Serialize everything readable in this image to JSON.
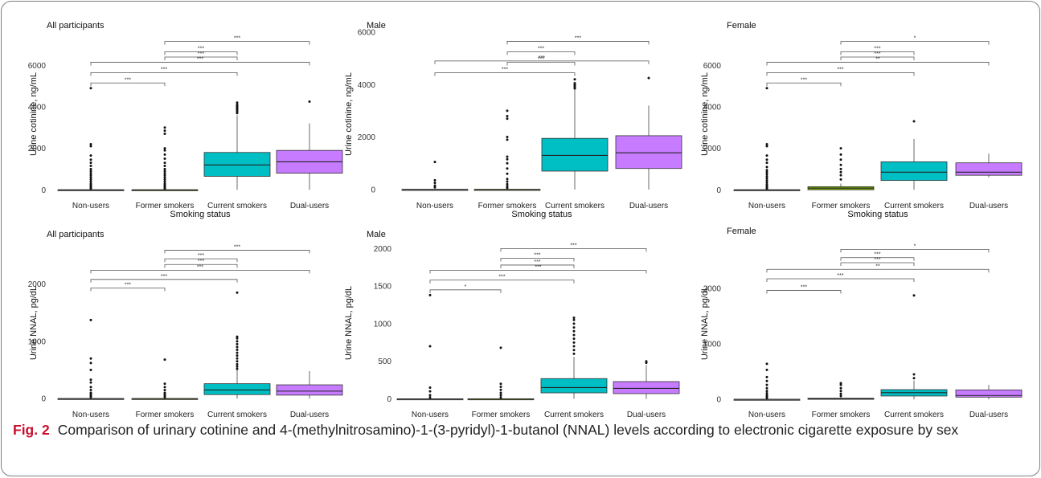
{
  "figure": {
    "caption_label": "Fig. 2",
    "caption_text": "Comparison of urinary cotinine and 4-(methylnitrosamino)-1-(3-pyridyl)-1-butanol (NNAL) levels according to electronic cigarette exposure by sex"
  },
  "colors": {
    "Non-users": "#999999",
    "Former smokers": "#7cae00",
    "Current smokers": "#00bfc4",
    "Dual-users": "#c77cff"
  },
  "chart_data": [
    {
      "type": "box",
      "title": "All participants",
      "xlabel": "Smoking status",
      "ylabel": "Urine cotinine, ng/mL",
      "categories": [
        "Non-users",
        "Former smokers",
        "Current smokers",
        "Dual-users"
      ],
      "ylim": [
        -300,
        7600
      ],
      "yticks": [
        0,
        2000,
        4000,
        6000
      ],
      "boxes": [
        {
          "min": 0,
          "q1": 0,
          "median": 0,
          "q3": 0,
          "max": 0,
          "outliers": [
            60,
            120,
            180,
            240,
            300,
            400,
            500,
            600,
            700,
            800,
            900,
            1000,
            1150,
            1300,
            1450,
            1650,
            2100,
            2200,
            4900
          ]
        },
        {
          "min": 0,
          "q1": 0,
          "median": 0,
          "q3": 0,
          "max": 0,
          "outliers": [
            60,
            120,
            180,
            240,
            300,
            400,
            500,
            600,
            700,
            800,
            900,
            1000,
            1150,
            1300,
            1500,
            1700,
            1900,
            2000,
            2700,
            2850,
            3000
          ]
        },
        {
          "min": 0,
          "q1": 650,
          "median": 1200,
          "q3": 1800,
          "max": 3600,
          "outliers": [
            3700,
            3780,
            3850,
            3900,
            3950,
            4000,
            4050,
            4100,
            4200
          ]
        },
        {
          "min": 0,
          "q1": 800,
          "median": 1350,
          "q3": 1900,
          "max": 3200,
          "outliers": [
            4250
          ]
        }
      ],
      "brackets": [
        {
          "from": 1,
          "to": 3,
          "y": 7150,
          "label": "***"
        },
        {
          "from": 1,
          "to": 2,
          "y": 6650,
          "label": "***"
        },
        {
          "from": 1,
          "to": 2,
          "y": 6400,
          "label": "***"
        },
        {
          "from": 0,
          "to": 3,
          "y": 6150,
          "label": "***"
        },
        {
          "from": 0,
          "to": 2,
          "y": 5650,
          "label": "***"
        },
        {
          "from": 0,
          "to": 1,
          "y": 5150,
          "label": "***"
        }
      ]
    },
    {
      "type": "box",
      "title": "Male",
      "xlabel": "Smoking status",
      "ylabel": "Urine cotinine, ng/mL",
      "categories": [
        "Non-users",
        "Former smokers",
        "Current smokers",
        "Dual-users"
      ],
      "ylim": [
        -250,
        6000
      ],
      "yticks": [
        0,
        2000,
        4000,
        6000
      ],
      "boxes": [
        {
          "min": 0,
          "q1": 0,
          "median": 0,
          "q3": 0,
          "max": 0,
          "outliers": [
            80,
            150,
            250,
            350,
            1050
          ]
        },
        {
          "min": 0,
          "q1": 0,
          "median": 0,
          "q3": 0,
          "max": 0,
          "outliers": [
            60,
            120,
            200,
            300,
            400,
            600,
            800,
            1000,
            1150,
            1250,
            1900,
            2000,
            2700,
            2800,
            3000
          ]
        },
        {
          "min": 0,
          "q1": 700,
          "median": 1300,
          "q3": 1950,
          "max": 3800,
          "outliers": [
            3850,
            3900,
            3950,
            4000,
            4050,
            4200
          ]
        },
        {
          "min": 0,
          "q1": 800,
          "median": 1400,
          "q3": 2050,
          "max": 3200,
          "outliers": [
            4250
          ]
        }
      ],
      "brackets": [
        {
          "from": 1,
          "to": 3,
          "y": 5650,
          "label": "***"
        },
        {
          "from": 1,
          "to": 2,
          "y": 5250,
          "label": "***"
        },
        {
          "from": 1,
          "to": 2,
          "y": 4850,
          "label": "***"
        },
        {
          "from": 0,
          "to": 3,
          "y": 4900,
          "label": "***"
        },
        {
          "from": 0,
          "to": 2,
          "y": 4450,
          "label": "***"
        }
      ]
    },
    {
      "type": "box",
      "title": "Female",
      "xlabel": "Smoking status",
      "ylabel": "Urine cotinine, ng/mL",
      "categories": [
        "Non-users",
        "Former smokers",
        "Current smokers",
        "Dual-users"
      ],
      "ylim": [
        -300,
        7600
      ],
      "yticks": [
        0,
        2000,
        4000,
        6000
      ],
      "boxes": [
        {
          "min": 0,
          "q1": 0,
          "median": 0,
          "q3": 0,
          "max": 0,
          "outliers": [
            60,
            120,
            180,
            250,
            350,
            450,
            550,
            650,
            750,
            850,
            950,
            1100,
            1300,
            1450,
            1650,
            2100,
            2200,
            4900
          ]
        },
        {
          "min": 0,
          "q1": 0,
          "median": 80,
          "q3": 150,
          "max": 300,
          "outliers": [
            500,
            700,
            850,
            1000,
            1200,
            1450,
            1700,
            2000
          ]
        },
        {
          "min": 0,
          "q1": 450,
          "median": 850,
          "q3": 1350,
          "max": 2450,
          "outliers": [
            3300
          ]
        },
        {
          "min": 600,
          "q1": 700,
          "median": 850,
          "q3": 1300,
          "max": 1750,
          "outliers": []
        }
      ],
      "brackets": [
        {
          "from": 1,
          "to": 3,
          "y": 7150,
          "label": "*"
        },
        {
          "from": 1,
          "to": 2,
          "y": 6650,
          "label": "***"
        },
        {
          "from": 1,
          "to": 2,
          "y": 6400,
          "label": "***"
        },
        {
          "from": 0,
          "to": 3,
          "y": 6150,
          "label": "**"
        },
        {
          "from": 0,
          "to": 2,
          "y": 5650,
          "label": "***"
        },
        {
          "from": 0,
          "to": 1,
          "y": 5150,
          "label": "***"
        }
      ]
    },
    {
      "type": "box",
      "title": "All participants",
      "xlabel": "Smoking status",
      "ylabel": "Urine NNAL, pg/dL",
      "categories": [
        "Non-users",
        "Former smokers",
        "Current smokers",
        "Dual-users"
      ],
      "ylim": [
        -110,
        2750
      ],
      "yticks": [
        0,
        1000,
        2000
      ],
      "boxes": [
        {
          "min": 0,
          "q1": 0,
          "median": 0,
          "q3": 0,
          "max": 0,
          "outliers": [
            25,
            50,
            75,
            100,
            150,
            200,
            280,
            330,
            500,
            620,
            700,
            1370
          ]
        },
        {
          "min": 0,
          "q1": 0,
          "median": 0,
          "q3": 0,
          "max": 0,
          "outliers": [
            25,
            50,
            75,
            100,
            150,
            200,
            260,
            680
          ]
        },
        {
          "min": 0,
          "q1": 70,
          "median": 150,
          "q3": 260,
          "max": 500,
          "outliers": [
            520,
            560,
            600,
            650,
            700,
            750,
            800,
            850,
            900,
            950,
            1000,
            1050,
            1080,
            1850
          ]
        },
        {
          "min": 0,
          "q1": 60,
          "median": 130,
          "q3": 240,
          "max": 480,
          "outliers": []
        }
      ],
      "brackets": [
        {
          "from": 1,
          "to": 3,
          "y": 2590,
          "label": "***"
        },
        {
          "from": 1,
          "to": 2,
          "y": 2440,
          "label": "***"
        },
        {
          "from": 1,
          "to": 2,
          "y": 2340,
          "label": "***"
        },
        {
          "from": 0,
          "to": 3,
          "y": 2240,
          "label": "***"
        },
        {
          "from": 0,
          "to": 2,
          "y": 2080,
          "label": "***"
        },
        {
          "from": 0,
          "to": 1,
          "y": 1930,
          "label": "***"
        }
      ]
    },
    {
      "type": "box",
      "title": "Male",
      "xlabel": "Smoking status",
      "ylabel": "Urine NNAL, pg/dL",
      "categories": [
        "Non-users",
        "Former smokers",
        "Current smokers",
        "Dual-users"
      ],
      "ylim": [
        -80,
        2100
      ],
      "yticks": [
        0,
        500,
        1000,
        1500,
        2000
      ],
      "boxes": [
        {
          "min": 0,
          "q1": 0,
          "median": 0,
          "q3": 0,
          "max": 0,
          "outliers": [
            20,
            50,
            100,
            150,
            700,
            1380
          ]
        },
        {
          "min": 0,
          "q1": 0,
          "median": 0,
          "q3": 0,
          "max": 0,
          "outliers": [
            20,
            50,
            80,
            120,
            160,
            200,
            680
          ]
        },
        {
          "min": 0,
          "q1": 80,
          "median": 150,
          "q3": 270,
          "max": 560,
          "outliers": [
            600,
            650,
            700,
            750,
            800,
            850,
            900,
            950,
            1000,
            1050,
            1080
          ]
        },
        {
          "min": 0,
          "q1": 70,
          "median": 140,
          "q3": 230,
          "max": 450,
          "outliers": [
            480,
            500
          ]
        }
      ],
      "brackets": [
        {
          "from": 1,
          "to": 3,
          "y": 2000,
          "label": "***"
        },
        {
          "from": 1,
          "to": 2,
          "y": 1870,
          "label": "***"
        },
        {
          "from": 1,
          "to": 2,
          "y": 1780,
          "label": "***"
        },
        {
          "from": 0,
          "to": 3,
          "y": 1710,
          "label": "***"
        },
        {
          "from": 0,
          "to": 2,
          "y": 1580,
          "label": "***"
        },
        {
          "from": 0,
          "to": 1,
          "y": 1450,
          "label": "*"
        }
      ]
    },
    {
      "type": "box",
      "title": "Female",
      "xlabel": "Smoking status",
      "ylabel": "Urine NNAL, pg/dL",
      "categories": [
        "Non-users",
        "Former smokers",
        "Current smokers",
        "Dual-users"
      ],
      "ylim": [
        -100,
        2850
      ],
      "yticks": [
        0,
        1000,
        2000
      ],
      "boxes": [
        {
          "min": 0,
          "q1": 0,
          "median": 0,
          "q3": 0,
          "max": 0,
          "outliers": [
            25,
            50,
            75,
            110,
            150,
            200,
            260,
            330,
            400,
            530,
            640
          ]
        },
        {
          "min": 0,
          "q1": 0,
          "median": 10,
          "q3": 20,
          "max": 40,
          "outliers": [
            60,
            100,
            150,
            200,
            260,
            290
          ]
        },
        {
          "min": 0,
          "q1": 60,
          "median": 120,
          "q3": 175,
          "max": 340,
          "outliers": [
            380,
            450,
            1870
          ]
        },
        {
          "min": 0,
          "q1": 40,
          "median": 70,
          "q3": 170,
          "max": 260,
          "outliers": []
        }
      ],
      "brackets": [
        {
          "from": 1,
          "to": 3,
          "y": 2700,
          "label": "*"
        },
        {
          "from": 1,
          "to": 2,
          "y": 2550,
          "label": "***"
        },
        {
          "from": 1,
          "to": 2,
          "y": 2460,
          "label": "***"
        },
        {
          "from": 0,
          "to": 3,
          "y": 2340,
          "label": "**"
        },
        {
          "from": 0,
          "to": 2,
          "y": 2170,
          "label": "***"
        },
        {
          "from": 0,
          "to": 1,
          "y": 1960,
          "label": "***"
        }
      ]
    }
  ]
}
